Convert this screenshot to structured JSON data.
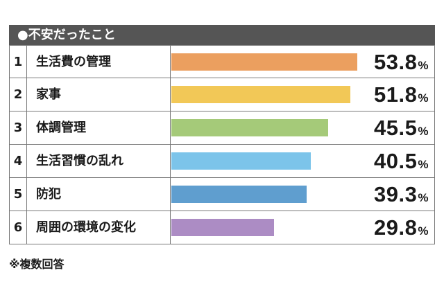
{
  "chart_data": {
    "type": "bar",
    "orientation": "horizontal",
    "title": "●不安だったこと",
    "categories": [
      "生活費の管理",
      "家事",
      "体調管理",
      "生活習慣の乱れ",
      "防犯",
      "周囲の環境の変化"
    ],
    "ranks": [
      "1",
      "2",
      "3",
      "4",
      "5",
      "6"
    ],
    "values": [
      53.8,
      51.8,
      45.5,
      40.5,
      39.3,
      29.8
    ],
    "value_labels": [
      "53.8",
      "51.8",
      "45.5",
      "40.5",
      "39.3",
      "29.8"
    ],
    "unit": "%",
    "colors": [
      "#eb9f5f",
      "#f2c857",
      "#a5ca79",
      "#7cc4ea",
      "#5f9ecf",
      "#ac8cc4"
    ],
    "xlim": [
      0,
      55.5
    ],
    "note": "※複数回答"
  }
}
